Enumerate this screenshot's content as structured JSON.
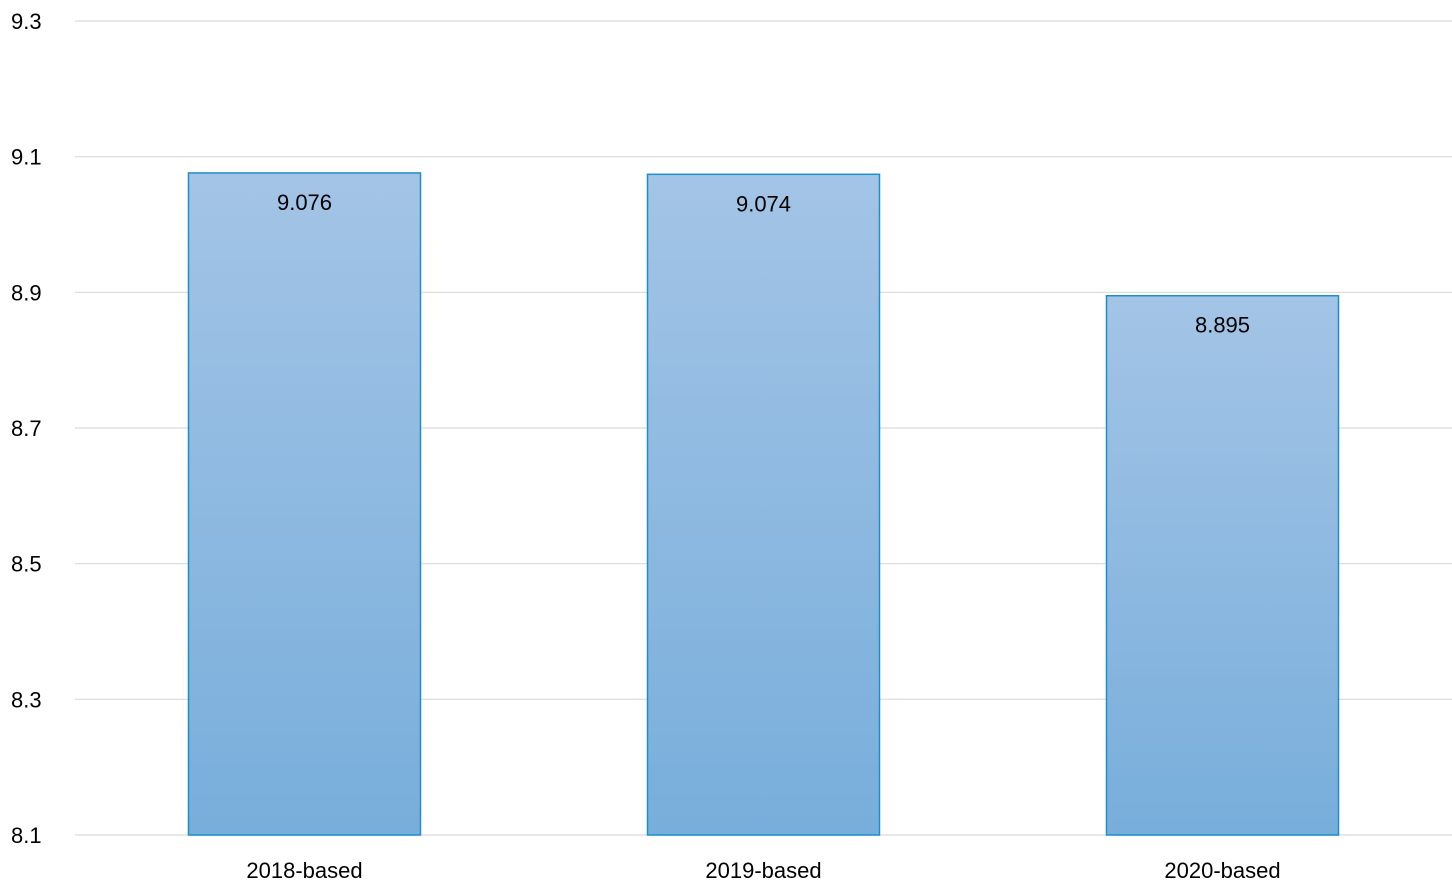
{
  "chart_data": {
    "type": "bar",
    "title": "",
    "xlabel": "",
    "ylabel": "",
    "categories": [
      "2018-based",
      "2019-based",
      "2020-based"
    ],
    "values": [
      9.076,
      9.074,
      8.895
    ],
    "data_labels": [
      "9.076",
      "9.074",
      "8.895"
    ],
    "ylim": [
      8.1,
      9.3
    ],
    "yticks": [
      8.1,
      8.3,
      8.5,
      8.7,
      8.9,
      9.1,
      9.3
    ],
    "ytick_labels": [
      "8.1",
      "8.3",
      "8.5",
      "8.7",
      "8.9",
      "9.1",
      "9.3"
    ],
    "grid": true,
    "legend": "none",
    "colors": {
      "bar_top": "#a3c4e6",
      "bar_bottom": "#78aedb",
      "bar_border": "#1b8fc6",
      "grid": "#d9d9d9"
    }
  }
}
